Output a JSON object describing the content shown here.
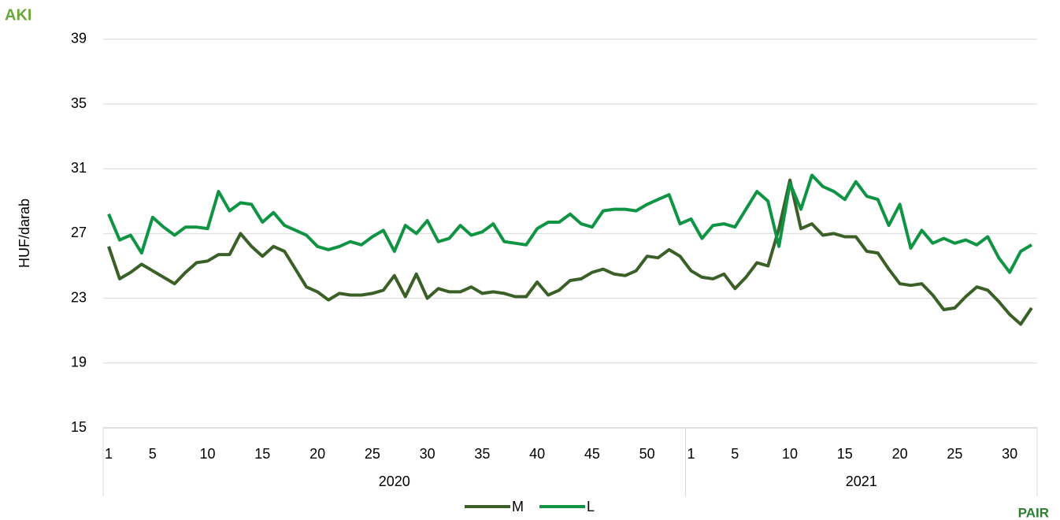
{
  "chart_data": {
    "type": "line",
    "y_label": "HUF/darab",
    "logos": [
      "AKI",
      "PAIR"
    ],
    "categories": [
      1,
      null,
      null,
      null,
      5,
      null,
      null,
      null,
      null,
      10,
      null,
      null,
      null,
      null,
      15,
      null,
      null,
      null,
      null,
      20,
      null,
      null,
      null,
      null,
      25,
      null,
      null,
      null,
      null,
      30,
      null,
      null,
      null,
      null,
      35,
      null,
      null,
      null,
      null,
      40,
      null,
      null,
      null,
      null,
      45,
      null,
      null,
      null,
      null,
      50,
      null,
      null,
      null,
      1,
      null,
      null,
      null,
      5,
      null,
      null,
      null,
      null,
      10,
      null,
      null,
      null,
      null,
      15,
      null,
      null,
      null,
      null,
      20,
      null,
      null,
      null,
      null,
      25,
      null,
      null,
      null,
      null,
      30,
      null,
      null
    ],
    "x_groups": [
      {
        "label": "2020",
        "size": 53
      },
      {
        "label": "2021",
        "size": 32
      }
    ],
    "series": [
      {
        "name": "M",
        "color": "#3a5f27",
        "values": [
          26.2,
          24.2,
          24.6,
          25.1,
          24.7,
          24.3,
          23.9,
          24.6,
          25.2,
          25.3,
          25.7,
          25.7,
          27.0,
          26.2,
          25.6,
          26.2,
          25.9,
          24.8,
          23.7,
          23.4,
          22.9,
          23.3,
          23.2,
          23.2,
          23.3,
          23.5,
          24.4,
          23.1,
          24.5,
          23.0,
          23.6,
          23.4,
          23.4,
          23.7,
          23.3,
          23.4,
          23.3,
          23.1,
          23.1,
          24.0,
          23.2,
          23.5,
          24.1,
          24.2,
          24.6,
          24.8,
          24.5,
          24.4,
          24.7,
          25.6,
          25.5,
          26.0,
          25.6,
          24.7,
          24.3,
          24.2,
          24.5,
          23.6,
          24.3,
          25.2,
          25.0,
          27.3,
          30.3,
          27.3,
          27.6,
          26.9,
          27.0,
          26.8,
          26.8,
          25.9,
          25.8,
          24.8,
          23.9,
          23.8,
          23.9,
          23.2,
          22.3,
          22.4,
          23.1,
          23.7,
          23.5,
          22.8,
          22.0,
          21.4,
          22.4
        ]
      },
      {
        "name": "L",
        "color": "#0f9444",
        "values": [
          28.2,
          26.6,
          26.9,
          25.8,
          28.0,
          27.4,
          26.9,
          27.4,
          27.4,
          27.3,
          29.6,
          28.4,
          28.9,
          28.8,
          27.7,
          28.3,
          27.5,
          27.2,
          26.9,
          26.2,
          26.0,
          26.2,
          26.5,
          26.3,
          26.8,
          27.2,
          25.9,
          27.5,
          27.0,
          27.8,
          26.5,
          26.7,
          27.5,
          26.9,
          27.1,
          27.6,
          26.5,
          26.4,
          26.3,
          27.3,
          27.7,
          27.7,
          28.2,
          27.6,
          27.4,
          28.4,
          28.5,
          28.5,
          28.4,
          28.8,
          29.1,
          29.4,
          27.6,
          27.9,
          26.7,
          27.5,
          27.6,
          27.4,
          28.5,
          29.6,
          29.0,
          26.2,
          30.1,
          28.5,
          30.6,
          29.9,
          29.6,
          29.1,
          30.2,
          29.3,
          29.1,
          27.5,
          28.8,
          26.1,
          27.2,
          26.4,
          26.7,
          26.4,
          26.6,
          26.3,
          26.8,
          25.5,
          24.6,
          25.9,
          26.3
        ]
      }
    ],
    "ylim": [
      15,
      40.2
    ],
    "yticks": [
      15,
      19,
      23,
      27,
      31,
      35,
      39
    ],
    "grid": true,
    "legend": "bottom"
  }
}
